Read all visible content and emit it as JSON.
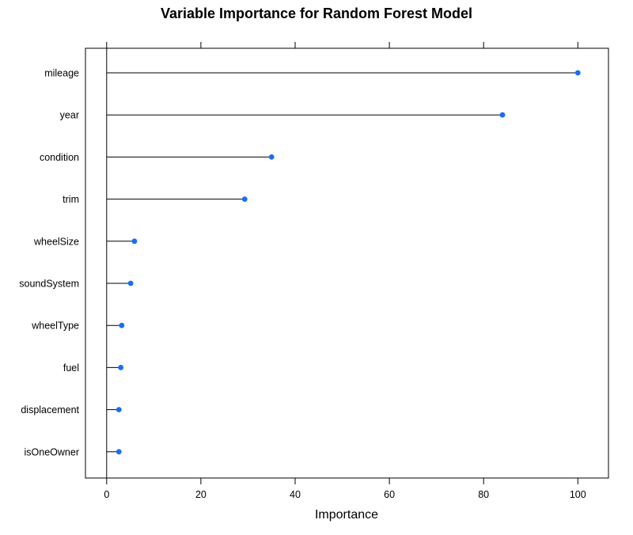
{
  "chart_data": {
    "type": "scatter",
    "subtype": "dotplot",
    "title": "Variable Importance for Random Forest Model",
    "xlabel": "Importance",
    "ylabel": "",
    "xlim": [
      -4.5,
      106.5
    ],
    "xticks": [
      0,
      20,
      40,
      60,
      80,
      100
    ],
    "xtick_labels": [
      "0",
      "20",
      "40",
      "60",
      "80",
      "100"
    ],
    "categories": [
      "mileage",
      "year",
      "condition",
      "trim",
      "wheelSize",
      "soundSystem",
      "wheelType",
      "fuel",
      "displacement",
      "isOneOwner"
    ],
    "values": [
      100,
      84,
      35,
      29.3,
      5.9,
      5.1,
      3.2,
      3.0,
      2.6,
      2.6
    ],
    "grid": false,
    "reference_line_at": 0,
    "point_color": "#1a6ef5",
    "line_color": "#000000"
  }
}
